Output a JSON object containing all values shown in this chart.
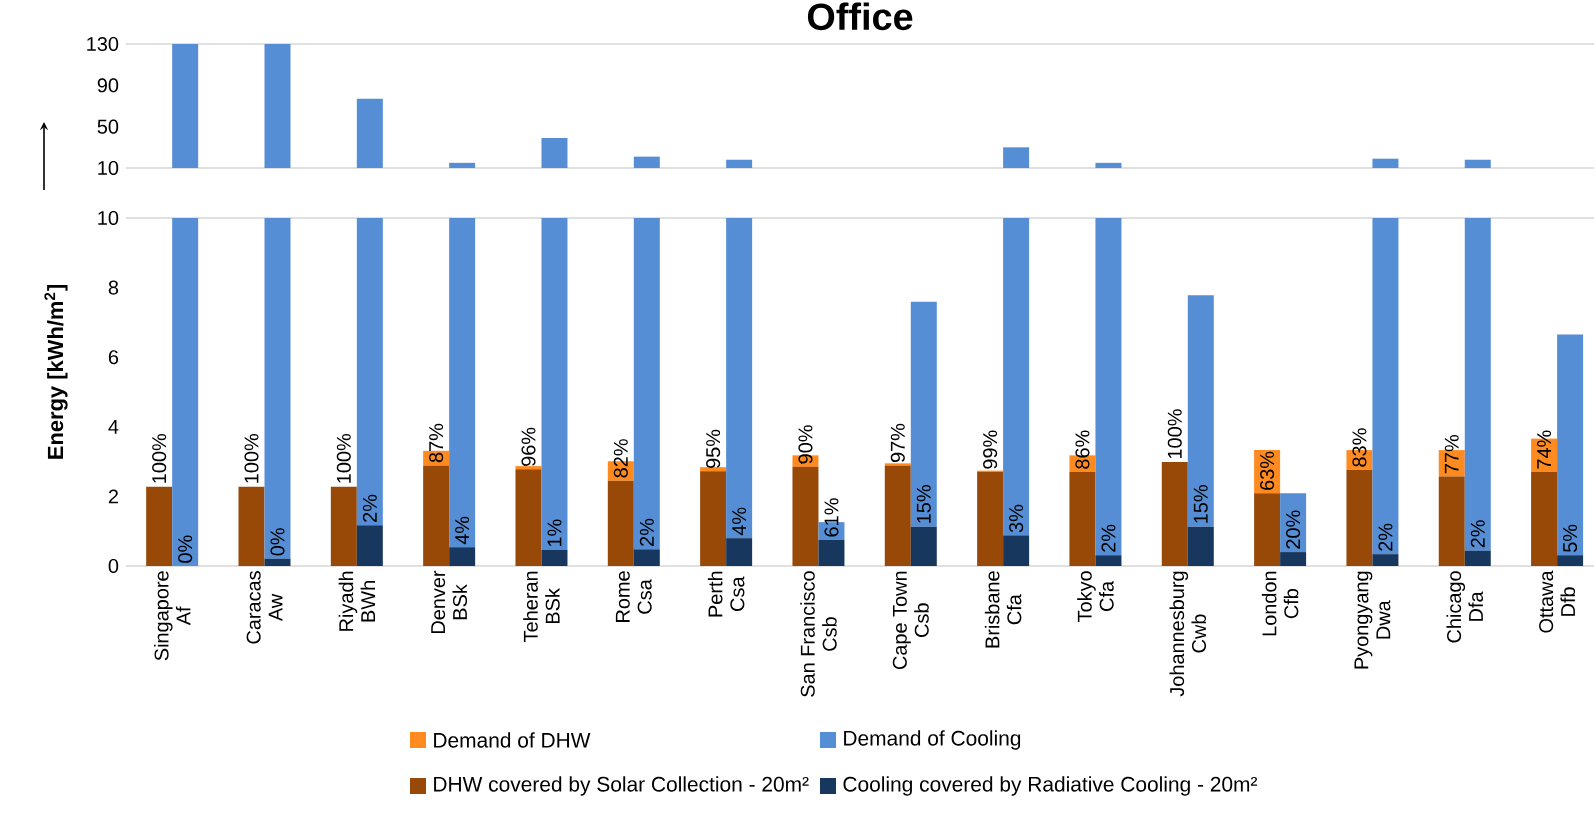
{
  "chart_data": [
    {
      "type": "bar",
      "title": "Office",
      "categories": [
        null,
        null,
        null,
        null,
        null,
        null,
        null,
        null,
        null,
        null,
        null,
        null,
        null,
        null,
        null,
        null
      ],
      "series": [
        {
          "color": "#558ed5",
          "values": [
            130,
            130,
            77,
            15,
            39,
            21,
            18,
            null,
            null,
            30,
            15,
            null,
            null,
            19,
            18,
            null
          ]
        }
      ],
      "ylim": [
        10,
        130
      ],
      "yticks": [
        10,
        50,
        90,
        130
      ],
      "tick_labels": "y"
    },
    {
      "type": "bar",
      "stacked": true,
      "ylabel": "Energy [kWh/m$^{2}$]",
      "legend": "bottom",
      "categories": [
        "Singapore\nAf",
        "Caracas\nAw",
        "Riyadh\nBWh",
        "Denver\nBSk",
        "Teheran\nBSk",
        "Rome\nCsa",
        "Perth\nCsa",
        "San Francisco\nCsb",
        "Cape Town\nCsb",
        "Brisbane\nCfa",
        "Tokyo\nCfa",
        "Johannesburg\nCwb",
        "London\nCfb",
        "Pyongyang\nDwa",
        "Chicago\nDfa",
        "Ottawa\nDfb"
      ],
      "series": [
        {
          "name": "DHW covered by Solar Collection - 20m²",
          "color": "#984807",
          "values": [
            2.28,
            2.28,
            2.28,
            2.89,
            2.78,
            2.45,
            2.72,
            2.85,
            2.89,
            2.7,
            2.7,
            2.99,
            2.09,
            2.76,
            2.57,
            2.7
          ]
        },
        {
          "name": "Demand of DHW",
          "color": "#ff8a1f",
          "values": [
            0,
            0,
            0,
            0.42,
            0.09,
            0.56,
            0.12,
            0.33,
            0.06,
            0.04,
            0.48,
            0,
            1.24,
            0.57,
            0.76,
            0.96
          ]
        }
      ],
      "annotations": [
        "100%",
        "100%",
        "100%",
        "87%",
        "96%",
        "82%",
        "95%",
        "90%",
        "97%",
        "99%",
        "86%",
        "100%",
        "63%",
        "83%",
        "77%",
        "74%"
      ],
      "ylim": [
        0,
        10
      ],
      "yticks": [
        0,
        2,
        4,
        6,
        8,
        10
      ]
    },
    {
      "type": "bar",
      "stacked": true,
      "legend": "bottom",
      "categories": [
        null,
        null,
        null,
        null,
        null,
        null,
        null,
        null,
        null,
        null,
        null,
        null,
        null,
        null,
        null,
        null
      ],
      "series": [
        {
          "name": "Cooling covered by Radiative Cooling - 20m²",
          "color": "#17375e",
          "values": [
            0,
            0.21,
            1.17,
            0.54,
            0.46,
            0.48,
            0.8,
            0.75,
            1.13,
            0.88,
            0.31,
            1.13,
            0.4,
            0.34,
            0.44,
            0.31
          ]
        },
        {
          "name": "Demand of Cooling",
          "color": "#558ed5",
          "values": [
            10,
            9.79,
            8.83,
            9.46,
            9.54,
            9.52,
            9.2,
            0.51,
            6.46,
            9.12,
            9.69,
            6.65,
            1.69,
            9.66,
            9.56,
            6.34
          ]
        }
      ],
      "annotations": [
        "0%",
        "0%",
        "2%",
        "4%",
        "1%",
        "2%",
        "4%",
        "61%",
        "15%",
        "3%",
        "2%",
        "15%",
        "20%",
        "2%",
        "2%",
        "5%"
      ],
      "ylim": [
        0,
        10
      ],
      "tick_labels": false
    }
  ]
}
